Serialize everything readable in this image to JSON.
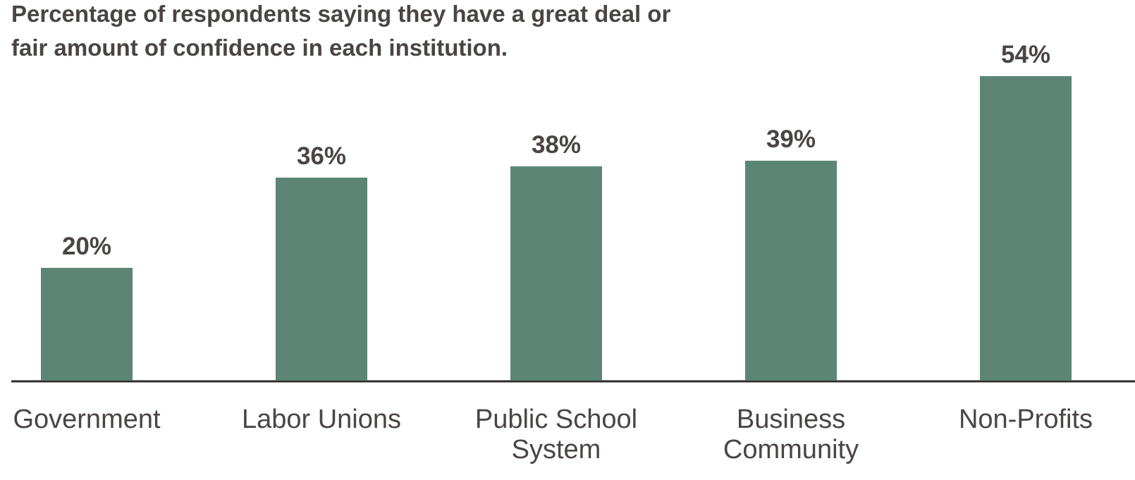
{
  "chart_data": {
    "type": "bar",
    "title": "Percentage of respondents saying they have a great deal or fair amount of confidence in each institution.",
    "categories": [
      "Government",
      "Labor Unions",
      "Public School System",
      "Business Community",
      "Non-Profits"
    ],
    "values": [
      20,
      36,
      38,
      39,
      54
    ],
    "value_labels": [
      "20%",
      "36%",
      "38%",
      "39%",
      "54%"
    ],
    "color": "#5c8575"
  }
}
